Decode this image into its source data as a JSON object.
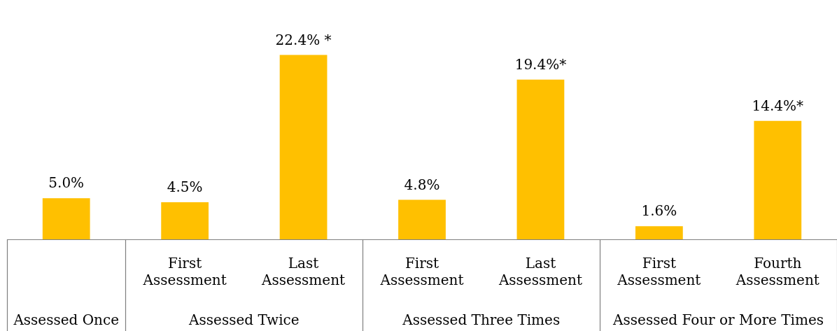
{
  "chart_data": {
    "type": "bar",
    "categories": [
      null,
      "First Assessment",
      "Last Assessment",
      "First Assessment",
      "Last Assessment",
      "First Assessment",
      "Fourth Assessment"
    ],
    "values": [
      5.0,
      4.5,
      22.4,
      4.8,
      19.4,
      1.6,
      14.4
    ],
    "value_labels": [
      "5.0%",
      "4.5%",
      "22.4% *",
      "4.8%",
      "19.4%*",
      "1.6%",
      "14.4%*"
    ],
    "color": "#ffc000",
    "annotations": [
      "Assessed Once",
      "Assessed Twice",
      "Assessed Three Times",
      "Assessed Four or More Times"
    ],
    "grid": false,
    "legend": false
  }
}
